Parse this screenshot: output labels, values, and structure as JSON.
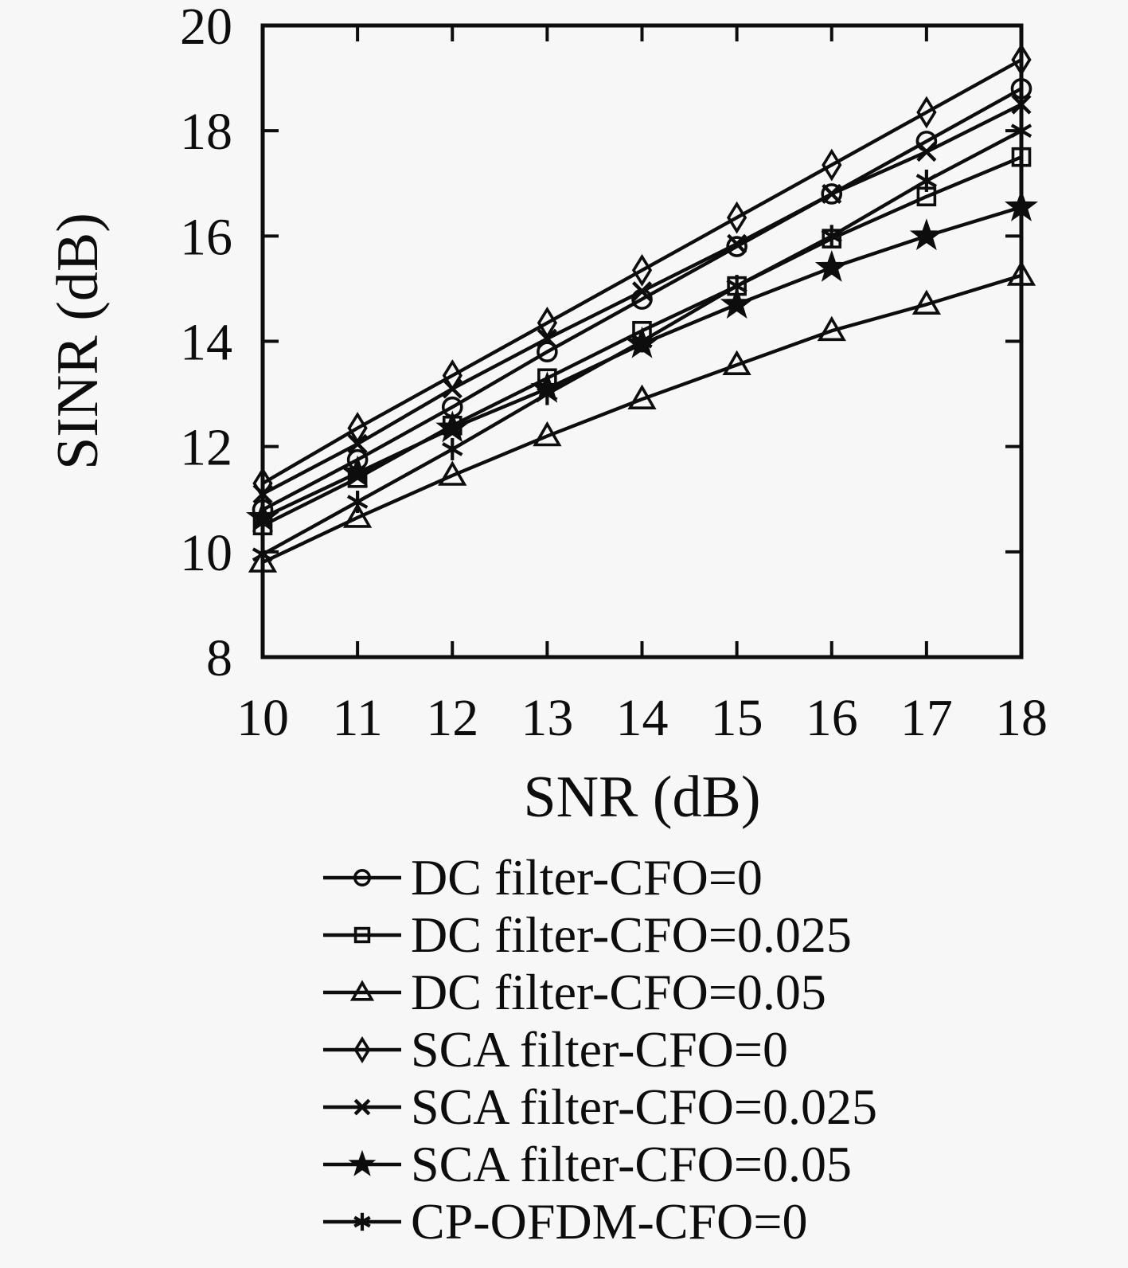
{
  "chart_data": {
    "type": "line",
    "title": "",
    "xlabel": "SNR (dB)",
    "ylabel": "SINR (dB)",
    "xlim": [
      10,
      18
    ],
    "ylim": [
      8,
      20
    ],
    "xticks": [
      10,
      11,
      12,
      13,
      14,
      15,
      16,
      17,
      18
    ],
    "yticks": [
      8,
      10,
      12,
      14,
      16,
      18,
      20
    ],
    "grid": false,
    "legend_position": "below-left",
    "color": "#0d0d0d",
    "background": "#f7f7f7",
    "x": [
      10,
      11,
      12,
      13,
      14,
      15,
      16,
      17,
      18
    ],
    "series": [
      {
        "name": "DC filter-CFO=0",
        "marker": "circle",
        "values": [
          10.8,
          11.75,
          12.75,
          13.8,
          14.8,
          15.8,
          16.8,
          17.8,
          18.8
        ]
      },
      {
        "name": "DC filter-CFO=0.025",
        "marker": "square",
        "values": [
          10.5,
          11.4,
          12.4,
          13.3,
          14.2,
          15.05,
          15.95,
          16.75,
          17.5
        ]
      },
      {
        "name": "DC filter-CFO=0.05",
        "marker": "triangle",
        "values": [
          9.8,
          10.65,
          11.45,
          12.2,
          12.9,
          13.55,
          14.2,
          14.7,
          15.25
        ]
      },
      {
        "name": "SCA filter-CFO=0",
        "marker": "diamond",
        "values": [
          11.3,
          12.35,
          13.35,
          14.35,
          15.35,
          16.35,
          17.35,
          18.35,
          19.35
        ]
      },
      {
        "name": "SCA filter-CFO=0.025",
        "marker": "x",
        "values": [
          11.1,
          12.05,
          13.1,
          14.05,
          14.95,
          15.85,
          16.8,
          17.6,
          18.5
        ]
      },
      {
        "name": "SCA filter-CFO=0.05",
        "marker": "star",
        "values": [
          10.65,
          11.5,
          12.35,
          13.1,
          13.95,
          14.7,
          15.4,
          16.0,
          16.55
        ]
      },
      {
        "name": "CP-OFDM-CFO=0",
        "marker": "asterisk",
        "values": [
          9.95,
          10.95,
          11.95,
          13.0,
          14.0,
          15.05,
          16.0,
          17.05,
          18.0
        ]
      }
    ]
  }
}
